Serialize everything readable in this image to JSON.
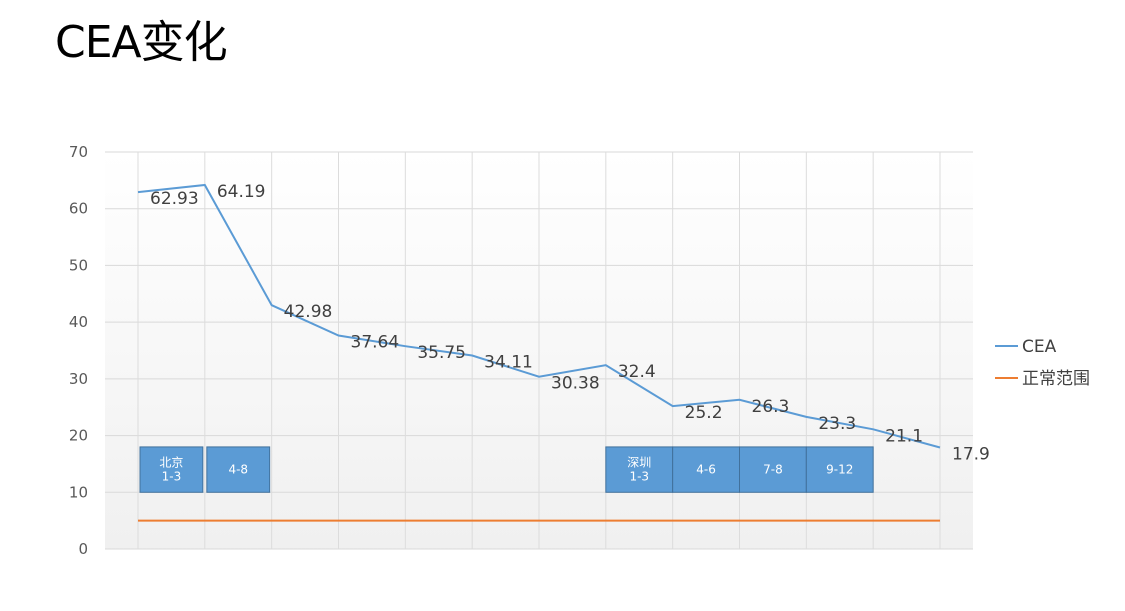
{
  "title": "CEA变化",
  "chart_data": {
    "type": "line",
    "ylim": [
      0,
      70
    ],
    "yticks": [
      0,
      10,
      20,
      30,
      40,
      50,
      60,
      70
    ],
    "grid": true,
    "legend_position": "right",
    "x_count": 13,
    "series": [
      {
        "name": "CEA",
        "color": "#5b9bd5",
        "values": [
          62.93,
          64.19,
          42.98,
          37.64,
          35.75,
          34.11,
          30.38,
          32.4,
          25.2,
          26.3,
          23.3,
          21.1,
          17.9
        ],
        "labels": [
          "62.93",
          "64.19",
          "42.98",
          "37.64",
          "35.75",
          "34.11",
          "30.38",
          "32.4",
          "25.2",
          "26.3",
          "23.3",
          "21.1",
          "17.9"
        ]
      },
      {
        "name": "正常范围",
        "color": "#ed7d31",
        "values": [
          5,
          5,
          5,
          5,
          5,
          5,
          5,
          5,
          5,
          5,
          5,
          5,
          5
        ]
      }
    ],
    "annotations": [
      {
        "lines": [
          "北京",
          "1-3"
        ],
        "x_start": 0,
        "x_end": 1
      },
      {
        "lines": [
          "4-8"
        ],
        "x_start": 1,
        "x_end": 2
      },
      {
        "lines": [
          "深圳",
          "1-3"
        ],
        "x_start": 7,
        "x_end": 8
      },
      {
        "lines": [
          "4-6"
        ],
        "x_start": 8,
        "x_end": 9
      },
      {
        "lines": [
          "7-8"
        ],
        "x_start": 9,
        "x_end": 10
      },
      {
        "lines": [
          "9-12"
        ],
        "x_start": 10,
        "x_end": 11
      }
    ],
    "annotation_y_range": [
      10,
      18
    ],
    "annotation_color": "#5b9bd5"
  }
}
